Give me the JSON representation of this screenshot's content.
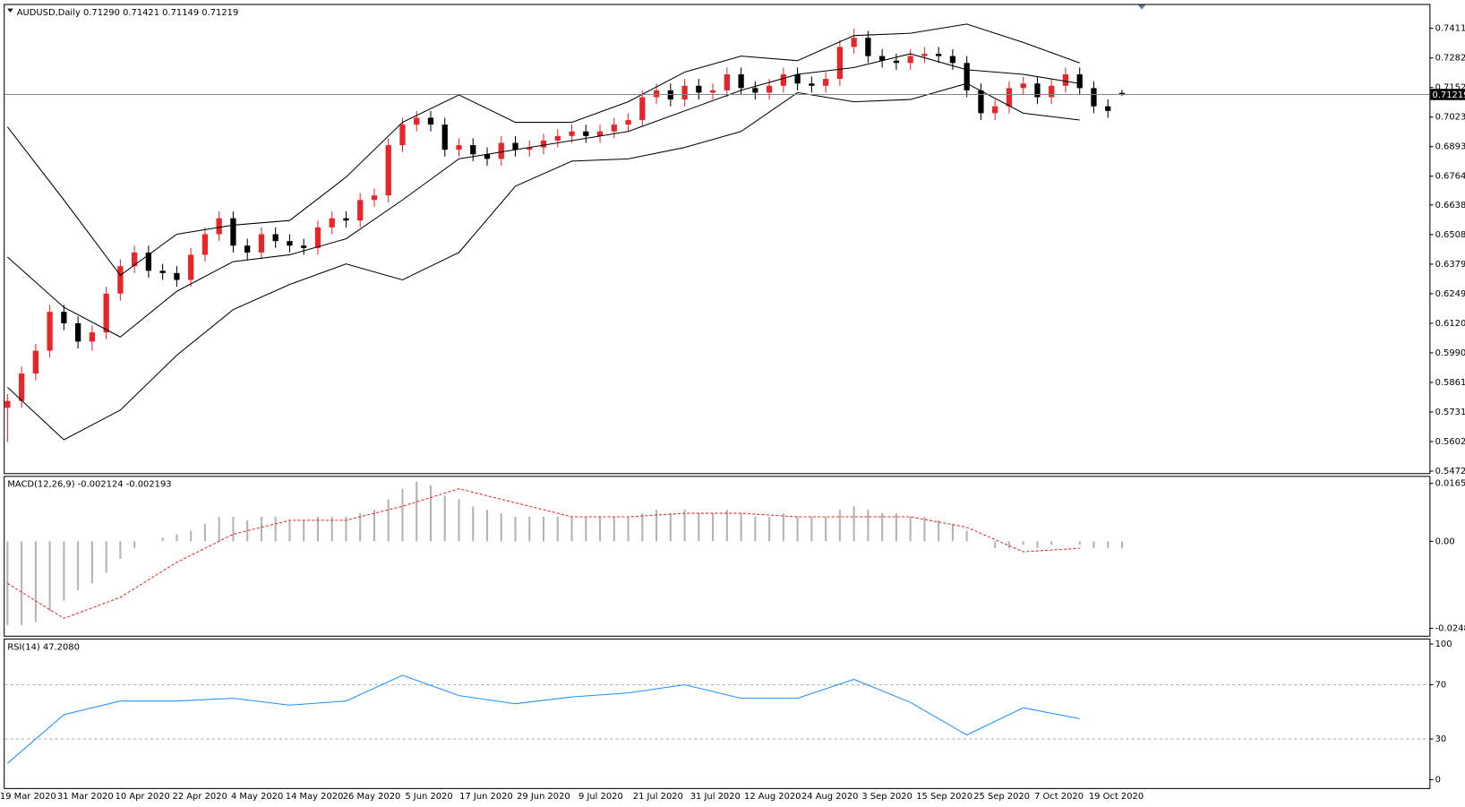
{
  "chart_data": [
    {
      "type": "candlestick",
      "title": "AUDUSD,Daily  0.71290 0.71421 0.71149 0.71219",
      "up_color": "#e8262a",
      "down_color": "#000000",
      "band_color": "#000000",
      "last_price": 0.71219,
      "ylim": [
        0.5468,
        0.7514
      ],
      "yticks": [
        0.74115,
        {
          "value": 0.7282,
          "label": "0.72820"
        },
        0.71525,
        {
          "value": 0.7023,
          "label": "0.70230"
        },
        0.68935,
        {
          "value": 0.6764,
          "label": "0.67640"
        },
        {
          "value": 0.6638,
          "label": "0.66380"
        },
        0.65085,
        {
          "value": 0.6379,
          "label": "0.63790"
        },
        0.62495,
        {
          "value": 0.612,
          "label": "0.61200"
        },
        0.59905,
        {
          "value": 0.5861,
          "label": "0.58610"
        },
        0.57315,
        {
          "value": 0.5602,
          "label": "0.56020"
        },
        0.54725
      ],
      "x_labels": [
        "19 Mar 2020",
        "31 Mar 2020",
        "10 Apr 2020",
        "22 Apr 2020",
        "4 May 2020",
        "14 May 2020",
        "26 May 2020",
        "5 Jun 2020",
        "17 Jun 2020",
        "29 Jun 2020",
        "9 Jul 2020",
        "21 Jul 2020",
        "31 Jul 2020",
        "12 Aug 2020",
        "24 Aug 2020",
        "3 Sep 2020",
        "15 Sep 2020",
        "25 Sep 2020",
        "7 Oct 2020",
        "19 Oct 2020"
      ],
      "candles": [
        [
          0.575,
          0.581,
          0.56,
          0.578
        ],
        [
          0.578,
          0.593,
          0.575,
          0.59
        ],
        [
          0.59,
          0.603,
          0.587,
          0.6
        ],
        [
          0.6,
          0.62,
          0.597,
          0.617
        ],
        [
          0.617,
          0.62,
          0.609,
          0.612
        ],
        [
          0.612,
          0.615,
          0.601,
          0.604
        ],
        [
          0.604,
          0.611,
          0.6,
          0.608
        ],
        [
          0.608,
          0.628,
          0.605,
          0.625
        ],
        [
          0.625,
          0.64,
          0.622,
          0.637
        ],
        [
          0.637,
          0.646,
          0.634,
          0.643
        ],
        [
          0.643,
          0.646,
          0.632,
          0.635
        ],
        [
          0.635,
          0.638,
          0.631,
          0.634
        ],
        [
          0.634,
          0.637,
          0.628,
          0.631
        ],
        [
          0.631,
          0.645,
          0.628,
          0.642
        ],
        [
          0.642,
          0.654,
          0.639,
          0.651
        ],
        [
          0.651,
          0.661,
          0.648,
          0.658
        ],
        [
          0.658,
          0.661,
          0.643,
          0.646
        ],
        [
          0.646,
          0.649,
          0.64,
          0.643
        ],
        [
          0.643,
          0.654,
          0.64,
          0.651
        ],
        [
          0.651,
          0.654,
          0.645,
          0.648
        ],
        [
          0.648,
          0.651,
          0.643,
          0.646
        ],
        [
          0.646,
          0.649,
          0.642,
          0.645
        ],
        [
          0.645,
          0.657,
          0.642,
          0.654
        ],
        [
          0.654,
          0.661,
          0.651,
          0.658
        ],
        [
          0.658,
          0.661,
          0.654,
          0.657
        ],
        [
          0.657,
          0.669,
          0.654,
          0.666
        ],
        [
          0.666,
          0.671,
          0.663,
          0.668
        ],
        [
          0.668,
          0.693,
          0.665,
          0.69
        ],
        [
          0.69,
          0.702,
          0.687,
          0.699
        ],
        [
          0.699,
          0.705,
          0.696,
          0.702
        ],
        [
          0.702,
          0.705,
          0.696,
          0.699
        ],
        [
          0.699,
          0.702,
          0.685,
          0.688
        ],
        [
          0.688,
          0.693,
          0.685,
          0.69
        ],
        [
          0.69,
          0.693,
          0.683,
          0.686
        ],
        [
          0.686,
          0.689,
          0.681,
          0.684
        ],
        [
          0.684,
          0.694,
          0.681,
          0.691
        ],
        [
          0.691,
          0.694,
          0.685,
          0.688
        ],
        [
          0.688,
          0.692,
          0.685,
          0.689
        ],
        [
          0.689,
          0.695,
          0.686,
          0.692
        ],
        [
          0.692,
          0.697,
          0.689,
          0.694
        ],
        [
          0.694,
          0.699,
          0.691,
          0.696
        ],
        [
          0.696,
          0.699,
          0.691,
          0.694
        ],
        [
          0.694,
          0.699,
          0.691,
          0.696
        ],
        [
          0.696,
          0.702,
          0.693,
          0.699
        ],
        [
          0.699,
          0.704,
          0.696,
          0.701
        ],
        [
          0.701,
          0.714,
          0.698,
          0.711
        ],
        [
          0.711,
          0.717,
          0.708,
          0.714
        ],
        [
          0.714,
          0.717,
          0.707,
          0.71
        ],
        [
          0.71,
          0.719,
          0.707,
          0.716
        ],
        [
          0.716,
          0.719,
          0.71,
          0.713
        ],
        [
          0.713,
          0.717,
          0.71,
          0.714
        ],
        [
          0.714,
          0.724,
          0.711,
          0.721
        ],
        [
          0.721,
          0.724,
          0.712,
          0.715
        ],
        [
          0.715,
          0.718,
          0.71,
          0.713
        ],
        [
          0.713,
          0.719,
          0.71,
          0.716
        ],
        [
          0.716,
          0.724,
          0.713,
          0.721
        ],
        [
          0.721,
          0.724,
          0.714,
          0.717
        ],
        [
          0.717,
          0.72,
          0.713,
          0.716
        ],
        [
          0.716,
          0.722,
          0.713,
          0.719
        ],
        [
          0.719,
          0.736,
          0.716,
          0.733
        ],
        [
          0.733,
          0.741,
          0.73,
          0.737
        ],
        [
          0.737,
          0.74,
          0.726,
          0.729
        ],
        [
          0.729,
          0.732,
          0.724,
          0.727
        ],
        [
          0.727,
          0.73,
          0.723,
          0.726
        ],
        [
          0.726,
          0.732,
          0.723,
          0.729
        ],
        [
          0.729,
          0.733,
          0.726,
          0.73
        ],
        [
          0.73,
          0.733,
          0.726,
          0.729
        ],
        [
          0.729,
          0.732,
          0.723,
          0.726
        ],
        [
          0.726,
          0.729,
          0.711,
          0.714
        ],
        [
          0.714,
          0.717,
          0.701,
          0.704
        ],
        [
          0.704,
          0.71,
          0.701,
          0.707
        ],
        [
          0.707,
          0.718,
          0.704,
          0.715
        ],
        [
          0.715,
          0.72,
          0.712,
          0.717
        ],
        [
          0.717,
          0.72,
          0.708,
          0.711
        ],
        [
          0.711,
          0.719,
          0.708,
          0.716
        ],
        [
          0.716,
          0.724,
          0.713,
          0.721
        ],
        [
          0.721,
          0.724,
          0.712,
          0.715
        ],
        [
          0.715,
          0.718,
          0.704,
          0.707
        ],
        [
          0.707,
          0.71,
          0.702,
          0.705
        ],
        [
          0.7129,
          0.71421,
          0.71149,
          0.71219
        ]
      ],
      "bands": {
        "upper": [
          0.698,
          0.666,
          0.633,
          0.651,
          0.655,
          0.657,
          0.676,
          0.7,
          0.712,
          0.7,
          0.7,
          0.709,
          0.722,
          0.729,
          0.727,
          0.738,
          0.739,
          0.743,
          0.735,
          0.726
        ],
        "middle": [
          0.641,
          0.619,
          0.606,
          0.626,
          0.639,
          0.642,
          0.649,
          0.666,
          0.684,
          0.688,
          0.692,
          0.696,
          0.705,
          0.714,
          0.721,
          0.724,
          0.73,
          0.723,
          0.721,
          0.717
        ],
        "lower": [
          0.584,
          0.561,
          0.574,
          0.598,
          0.618,
          0.629,
          0.638,
          0.631,
          0.643,
          0.672,
          0.683,
          0.684,
          0.689,
          0.696,
          0.713,
          0.709,
          0.71,
          0.717,
          0.704,
          0.701
        ]
      }
    },
    {
      "type": "macd",
      "title": "MACD(12,26,9) -0.002124 -0.002193",
      "hist_color": "#b4b4b4",
      "signal_color": "#e8262a",
      "ylim": [
        -0.0267,
        0.0184
      ],
      "yticks": [
        0.016538,
        {
          "value": 0,
          "label": "0.00"
        },
        -0.024848
      ],
      "histogram": [
        -0.024,
        -0.024,
        -0.023,
        -0.02,
        -0.017,
        -0.014,
        -0.012,
        -0.009,
        -0.005,
        -0.002,
        0.0,
        0.001,
        0.002,
        0.003,
        0.005,
        0.007,
        0.007,
        0.006,
        0.007,
        0.007,
        0.006,
        0.006,
        0.007,
        0.007,
        0.007,
        0.008,
        0.009,
        0.012,
        0.015,
        0.017,
        0.016,
        0.013,
        0.012,
        0.01,
        0.009,
        0.008,
        0.007,
        0.007,
        0.007,
        0.007,
        0.007,
        0.007,
        0.007,
        0.007,
        0.007,
        0.008,
        0.009,
        0.008,
        0.009,
        0.008,
        0.008,
        0.009,
        0.008,
        0.007,
        0.007,
        0.008,
        0.007,
        0.007,
        0.007,
        0.009,
        0.01,
        0.009,
        0.008,
        0.008,
        0.007,
        0.007,
        0.006,
        0.005,
        0.003,
        0.0,
        -0.002,
        -0.002,
        -0.001,
        -0.002,
        -0.001,
        0.0,
        -0.001,
        -0.002,
        -0.002,
        -0.002
      ],
      "signal": [
        -0.012,
        -0.022,
        -0.016,
        -0.006,
        0.002,
        0.006,
        0.006,
        0.01,
        0.015,
        0.011,
        0.007,
        0.007,
        0.008,
        0.008,
        0.007,
        0.007,
        0.007,
        0.004,
        -0.003,
        -0.002
      ]
    },
    {
      "type": "rsi",
      "title": "RSI(14) 47.2080",
      "color": "#1e90ff",
      "levels": [
        70,
        30
      ],
      "ylim": [
        -5.5,
        103.4
      ],
      "yticks": [
        100,
        70,
        30,
        0
      ],
      "values": [
        12,
        48,
        58,
        58,
        60,
        55,
        58,
        77,
        62,
        56,
        61,
        64,
        70,
        60,
        60,
        74,
        57,
        33,
        53,
        45
      ]
    }
  ]
}
